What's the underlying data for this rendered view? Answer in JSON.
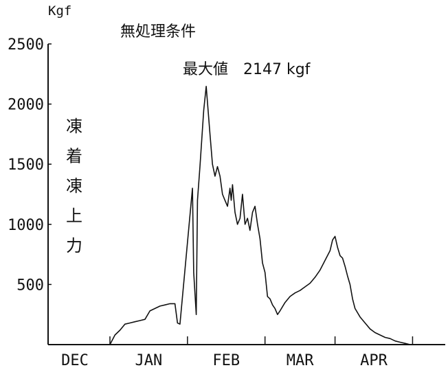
{
  "chart_data": {
    "type": "line",
    "title": "無処理条件",
    "annotation": "最大値　2147 kgf",
    "unit": "Kgf",
    "ylabel": "凍着凍上力",
    "ylim": [
      0,
      2500
    ],
    "yticks": [
      500,
      1000,
      1500,
      2000,
      2500
    ],
    "ytick_labels": [
      "500",
      "1000",
      "1500",
      "2000",
      "2500"
    ],
    "xlim": [
      0,
      150
    ],
    "x_axis_start": -28,
    "months": [
      {
        "label": "DEC",
        "x": 0
      },
      {
        "label": "JAN",
        "x": 31
      },
      {
        "label": "FEB",
        "x": 62
      },
      {
        "label": "MAR",
        "x": 90
      },
      {
        "label": "APR",
        "x": 121
      }
    ],
    "grid": false,
    "legend": "none",
    "series": [
      {
        "values": [
          [
            0,
            0
          ],
          [
            2,
            80
          ],
          [
            4,
            120
          ],
          [
            6,
            170
          ],
          [
            8,
            180
          ],
          [
            10,
            190
          ],
          [
            12,
            200
          ],
          [
            14,
            210
          ],
          [
            16,
            280
          ],
          [
            18,
            300
          ],
          [
            20,
            320
          ],
          [
            22,
            330
          ],
          [
            24,
            340
          ],
          [
            26,
            340
          ],
          [
            27,
            180
          ],
          [
            28,
            170
          ],
          [
            33,
            1300
          ],
          [
            33.5,
            600
          ],
          [
            34.5,
            250
          ],
          [
            35,
            1200
          ],
          [
            36,
            1480
          ],
          [
            37.5,
            1950
          ],
          [
            38.5,
            2147
          ],
          [
            40,
            1750
          ],
          [
            41,
            1500
          ],
          [
            42,
            1400
          ],
          [
            43,
            1480
          ],
          [
            44,
            1400
          ],
          [
            45,
            1250
          ],
          [
            46,
            1200
          ],
          [
            47,
            1150
          ],
          [
            48,
            1300
          ],
          [
            48.5,
            1200
          ],
          [
            49,
            1330
          ],
          [
            50,
            1100
          ],
          [
            51,
            1000
          ],
          [
            52,
            1050
          ],
          [
            53,
            1250
          ],
          [
            54,
            1000
          ],
          [
            55,
            1050
          ],
          [
            56,
            950
          ],
          [
            57,
            1100
          ],
          [
            58,
            1150
          ],
          [
            59,
            1000
          ],
          [
            60,
            880
          ],
          [
            61,
            680
          ],
          [
            62,
            600
          ],
          [
            63,
            400
          ],
          [
            64,
            380
          ],
          [
            65,
            330
          ],
          [
            66,
            300
          ],
          [
            67,
            250
          ],
          [
            68,
            280
          ],
          [
            70,
            350
          ],
          [
            72,
            400
          ],
          [
            74,
            430
          ],
          [
            76,
            450
          ],
          [
            78,
            480
          ],
          [
            80,
            510
          ],
          [
            82,
            560
          ],
          [
            84,
            620
          ],
          [
            86,
            700
          ],
          [
            88,
            780
          ],
          [
            89,
            870
          ],
          [
            90,
            900
          ],
          [
            91,
            810
          ],
          [
            92,
            740
          ],
          [
            93,
            720
          ],
          [
            94,
            650
          ],
          [
            95,
            570
          ],
          [
            96,
            500
          ],
          [
            97,
            380
          ],
          [
            98,
            300
          ],
          [
            100,
            230
          ],
          [
            102,
            180
          ],
          [
            104,
            130
          ],
          [
            106,
            100
          ],
          [
            108,
            80
          ],
          [
            110,
            60
          ],
          [
            112,
            50
          ],
          [
            114,
            30
          ],
          [
            116,
            20
          ],
          [
            118,
            10
          ],
          [
            120,
            0
          ]
        ]
      }
    ]
  }
}
